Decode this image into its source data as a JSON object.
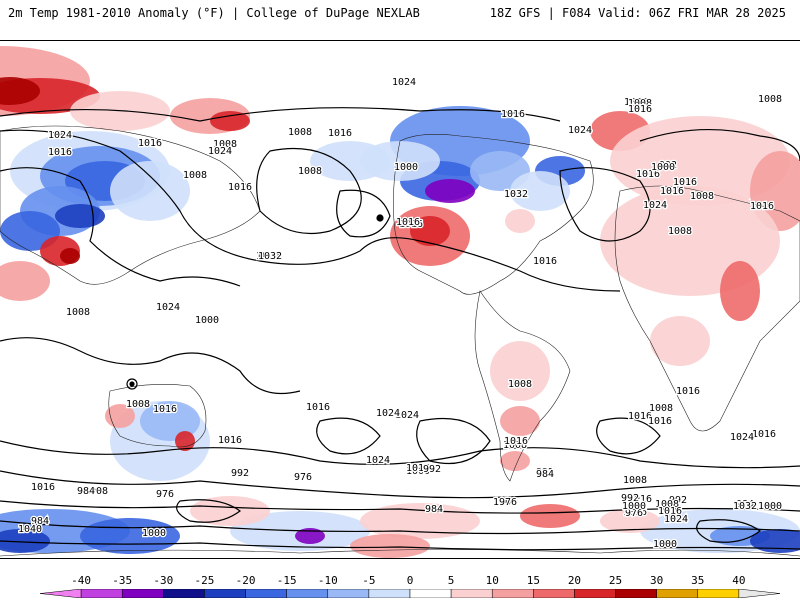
{
  "header": {
    "title": "2m Temp 1981-2010 Anomaly (°F) | College of DuPage NEXLAB",
    "valid": "18Z GFS | F084 Valid: 06Z FRI MAR 28 2025"
  },
  "isobars": [
    {
      "label": "1024"
    },
    {
      "label": "1016"
    },
    {
      "label": "1008"
    },
    {
      "label": "1000"
    },
    {
      "label": "992"
    },
    {
      "label": "984"
    },
    {
      "label": "976"
    },
    {
      "label": "1032"
    },
    {
      "label": "1040"
    }
  ],
  "contour_labels": [
    {
      "t": "1024"
    },
    {
      "t": "1016"
    },
    {
      "t": "1000"
    },
    {
      "t": "1008"
    },
    {
      "t": "1024"
    },
    {
      "t": "1016"
    },
    {
      "t": "1016"
    },
    {
      "t": "1008"
    },
    {
      "t": "1024"
    },
    {
      "t": "1008"
    },
    {
      "t": "1008"
    },
    {
      "t": "1016"
    },
    {
      "t": "1000"
    },
    {
      "t": "1016"
    },
    {
      "t": "1016"
    },
    {
      "t": "1024"
    },
    {
      "t": "1032"
    },
    {
      "t": "1008"
    },
    {
      "t": "1016"
    },
    {
      "t": "1032"
    },
    {
      "t": "1024"
    },
    {
      "t": "1016"
    },
    {
      "t": "1016"
    },
    {
      "t": "1016"
    },
    {
      "t": "1008"
    },
    {
      "t": "1008"
    },
    {
      "t": "1016"
    },
    {
      "t": "1024"
    },
    {
      "t": "1008"
    },
    {
      "t": "1016"
    },
    {
      "t": "1016"
    },
    {
      "t": "1016"
    },
    {
      "t": "1000"
    },
    {
      "t": "1024"
    },
    {
      "t": "1024"
    },
    {
      "t": "1016"
    },
    {
      "t": "992"
    },
    {
      "t": "1000"
    },
    {
      "t": "1016"
    },
    {
      "t": "1024"
    },
    {
      "t": "1008"
    },
    {
      "t": "1016"
    },
    {
      "t": "1016"
    },
    {
      "t": "1008"
    },
    {
      "t": "1008"
    },
    {
      "t": "1008"
    },
    {
      "t": "1016"
    },
    {
      "t": "1016"
    },
    {
      "t": "1024"
    },
    {
      "t": "1000"
    },
    {
      "t": "1008"
    },
    {
      "t": "984"
    },
    {
      "t": "1016"
    },
    {
      "t": "1008"
    },
    {
      "t": "1016"
    },
    {
      "t": "1008"
    },
    {
      "t": "1000"
    },
    {
      "t": "992"
    },
    {
      "t": "992"
    },
    {
      "t": "984"
    },
    {
      "t": "976"
    },
    {
      "t": "1024"
    },
    {
      "t": "1016"
    },
    {
      "t": "976"
    },
    {
      "t": "984"
    },
    {
      "t": "992"
    },
    {
      "t": "1000"
    },
    {
      "t": "1016"
    },
    {
      "t": "1000"
    },
    {
      "t": "1016"
    },
    {
      "t": "1040"
    },
    {
      "t": "984"
    },
    {
      "t": "976"
    },
    {
      "t": "992"
    },
    {
      "t": "1000"
    },
    {
      "t": "984"
    },
    {
      "t": "976"
    },
    {
      "t": "992"
    },
    {
      "t": "1008"
    },
    {
      "t": "1016"
    },
    {
      "t": "1024"
    },
    {
      "t": "1032"
    },
    {
      "t": "1000"
    }
  ],
  "colorbar": {
    "unit": "°F",
    "labels": [
      "-40",
      "-35",
      "-30",
      "-25",
      "-20",
      "-15",
      "-10",
      "-5",
      "0",
      "5",
      "10",
      "15",
      "20",
      "25",
      "30",
      "35",
      "40"
    ],
    "colors": [
      "#f080f0",
      "#c040e0",
      "#8000c0",
      "#10108c",
      "#1d3fbf",
      "#3a66e0",
      "#6690ee",
      "#99b8f5",
      "#cfe0fb",
      "#ffffff",
      "#fbd0d0",
      "#f5a0a0",
      "#ee6a6a",
      "#d8252a",
      "#aa0000",
      "#e0a000",
      "#ffd000",
      "#e8e8e8"
    ]
  },
  "anomaly_regions": [
    {
      "kind": "warm",
      "region": "north-asia-arctic"
    },
    {
      "kind": "cold",
      "region": "central-asia"
    },
    {
      "kind": "cold",
      "region": "canada-greenland"
    },
    {
      "kind": "warm",
      "region": "north-america-plains"
    },
    {
      "kind": "warm",
      "region": "europe-north-africa"
    },
    {
      "kind": "warm",
      "region": "middle-east"
    },
    {
      "kind": "cold",
      "region": "australia"
    },
    {
      "kind": "warm",
      "region": "south-america"
    },
    {
      "kind": "cold",
      "region": "antarctica-pacific"
    },
    {
      "kind": "cold",
      "region": "antarctica-indian"
    }
  ]
}
